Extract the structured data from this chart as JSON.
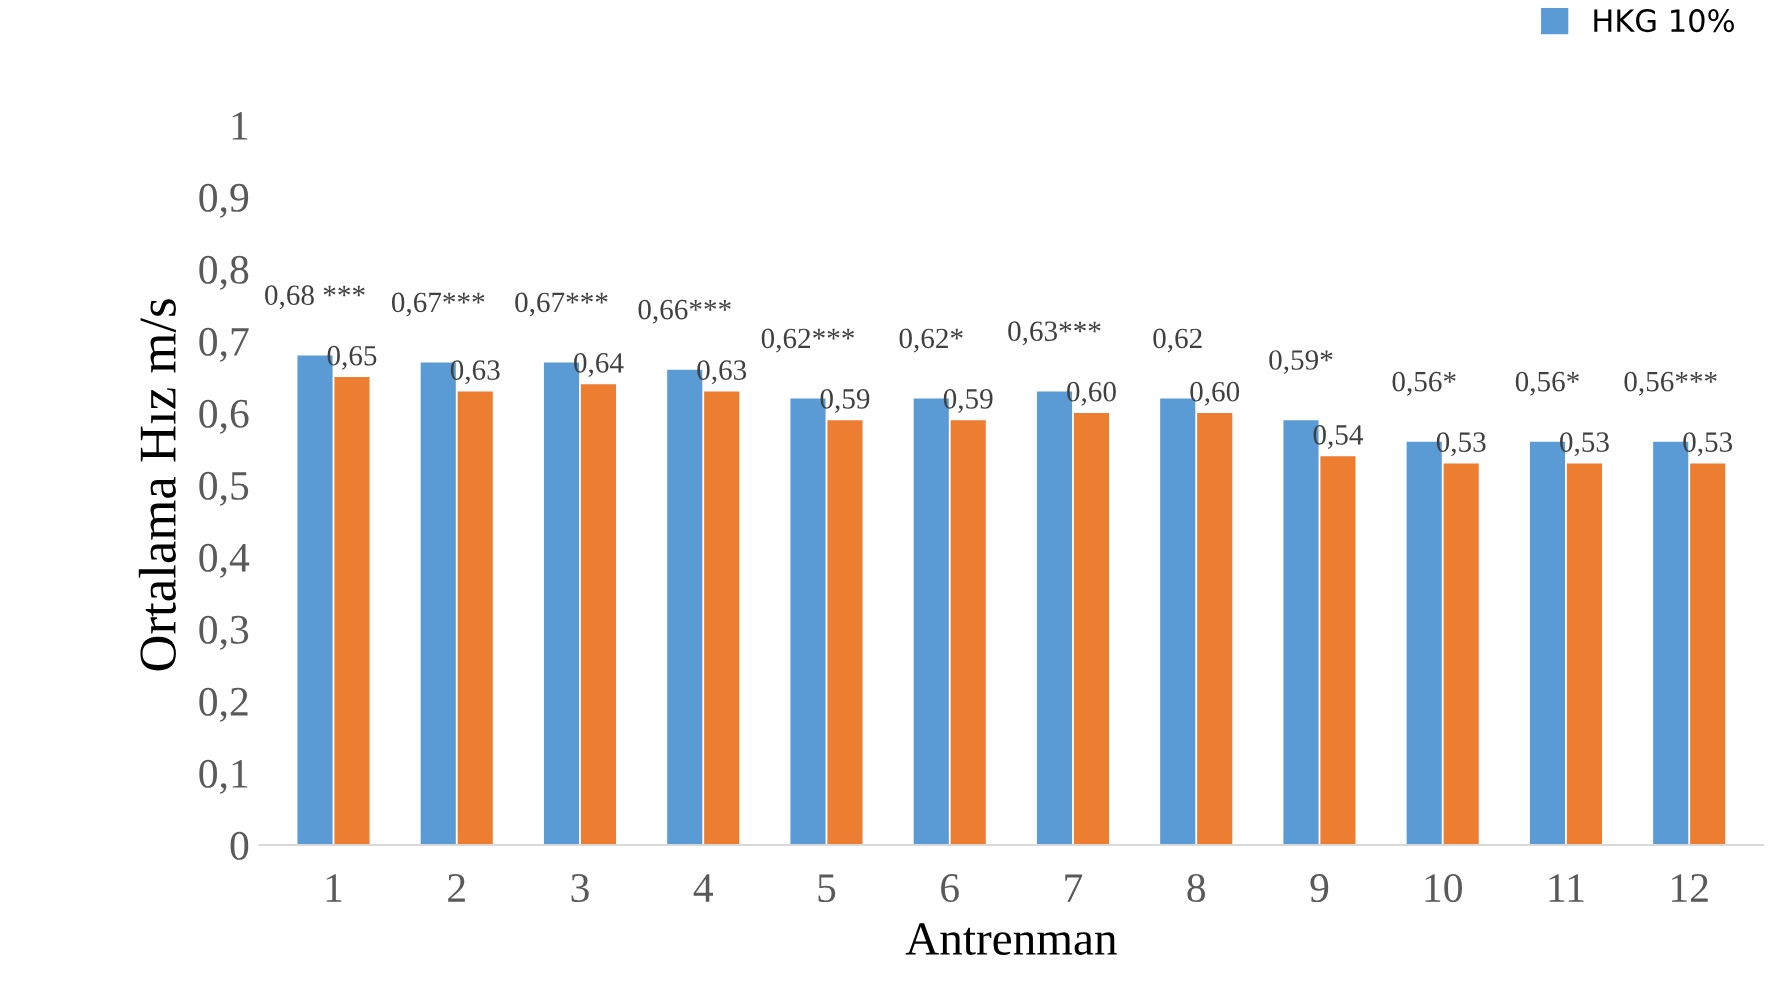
{
  "chart_data": {
    "type": "bar",
    "xlabel": "Antrenman",
    "ylabel": "Ortalama Hız m/s",
    "categories": [
      "1",
      "2",
      "3",
      "4",
      "5",
      "6",
      "7",
      "8",
      "9",
      "10",
      "11",
      "12"
    ],
    "series": [
      {
        "name": "HKG 10%",
        "color": "#5b9bd5",
        "values": [
          0.68,
          0.67,
          0.67,
          0.66,
          0.62,
          0.62,
          0.63,
          0.62,
          0.59,
          0.56,
          0.56,
          0.56
        ],
        "value_labels": [
          "0,68 ***",
          "0,67***",
          "0,67***",
          "0,66***",
          "0,62***",
          "0,62*",
          "0,63***",
          "0,62",
          "0,59*",
          "0,56*",
          "0,56*",
          "0,56***"
        ]
      },
      {
        "color": "#ed7d31",
        "values": [
          0.65,
          0.63,
          0.64,
          0.63,
          0.59,
          0.59,
          0.6,
          0.6,
          0.54,
          0.53,
          0.53,
          0.53
        ],
        "value_labels": [
          "0,65",
          "0,63",
          "0,64",
          "0,63",
          "0,59",
          "0,59",
          "0,60",
          "0,60",
          "0,54",
          "0,53",
          "0,53",
          "0,53"
        ]
      }
    ],
    "ylim": [
      0,
      1
    ],
    "yticks": [
      {
        "value": 0,
        "label": "0"
      },
      {
        "value": 0.1,
        "label": "0,1"
      },
      {
        "value": 0.2,
        "label": "0,2"
      },
      {
        "value": 0.3,
        "label": "0,3"
      },
      {
        "value": 0.4,
        "label": "0,4"
      },
      {
        "value": 0.5,
        "label": "0,5"
      },
      {
        "value": 0.6,
        "label": "0,6"
      },
      {
        "value": 0.7,
        "label": "0,7"
      },
      {
        "value": 0.8,
        "label": "0,8"
      },
      {
        "value": 0.9,
        "label": "0,9"
      },
      {
        "value": 1,
        "label": "1"
      }
    ],
    "grid": false,
    "legend": "top right"
  }
}
